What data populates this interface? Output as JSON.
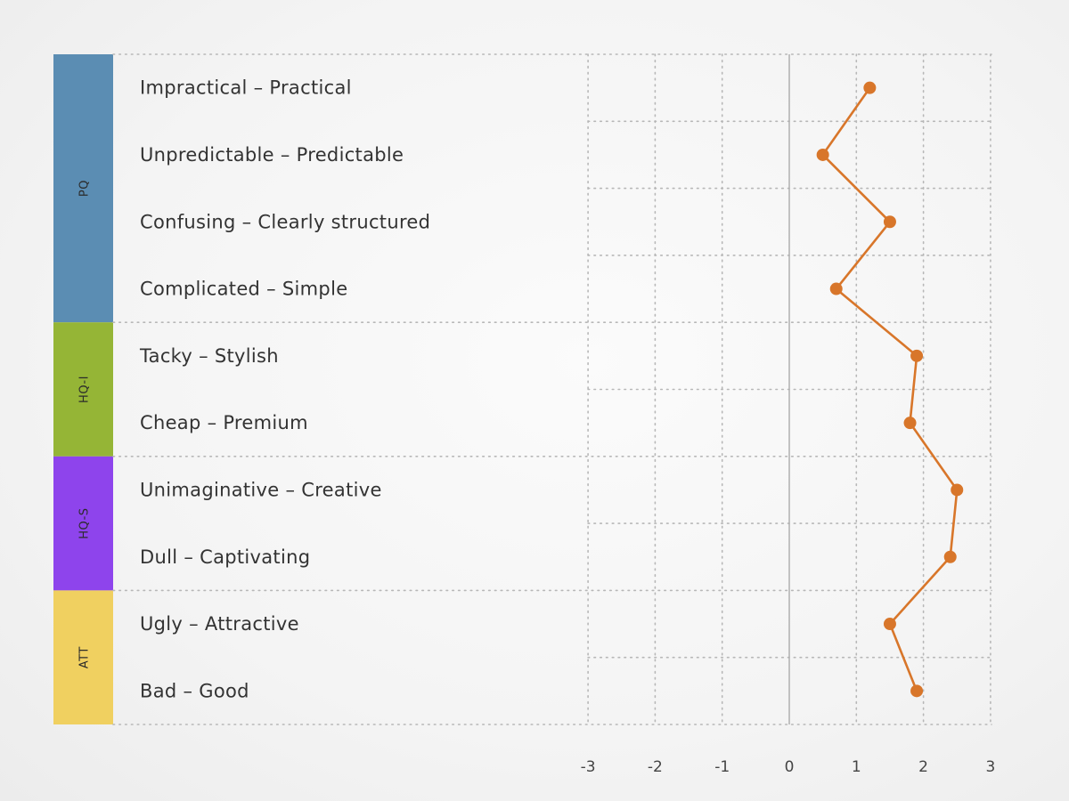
{
  "chart_data": {
    "type": "line",
    "title": "",
    "xlabel": "",
    "ylabel": "",
    "xlim": [
      -3,
      3
    ],
    "x_ticks": [
      "-3",
      "-2",
      "-1",
      "0",
      "1",
      "2",
      "3"
    ],
    "grid": true,
    "categories": [
      "Impractical – Practical",
      "Unpredictable – Predictable",
      "Confusing – Clearly structured",
      "Complicated – Simple",
      "Tacky – Stylish",
      "Cheap – Premium",
      "Unimaginative – Creative",
      "Dull – Captivating",
      "Ugly – Attractive",
      "Bad – Good"
    ],
    "series": [
      {
        "values": [
          1.2,
          0.5,
          1.5,
          0.7,
          1.9,
          1.8,
          2.5,
          2.4,
          1.5,
          1.9
        ]
      }
    ],
    "groups": [
      {
        "label": "PQ",
        "start": 0,
        "count": 4,
        "color": "#5b8db3"
      },
      {
        "label": "HQ-I",
        "start": 4,
        "count": 2,
        "color": "#95b536"
      },
      {
        "label": "HQ-S",
        "start": 6,
        "count": 2,
        "color": "#8e44ec"
      },
      {
        "label": "ATT",
        "start": 8,
        "count": 2,
        "color": "#f0d060"
      }
    ],
    "line_color": "#d8762a"
  }
}
